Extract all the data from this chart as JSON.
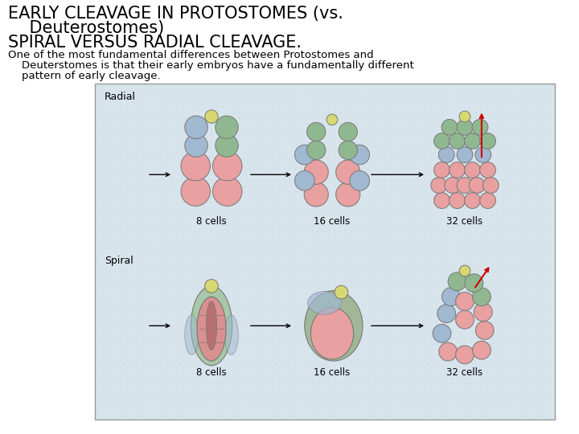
{
  "bg_color": "#ffffff",
  "title_line1": "EARLY CLEAVAGE IN PROTOSTOMES (vs.",
  "title_line2": "    Deuterostomes)",
  "title_line3": "SPIRAL VERSUS RADIAL CLEAVAGE.",
  "body_line1": "One of the most fundamental differences between Protostomes and",
  "body_line2": "    Deuterstomes is that their early embryos have a fundamentally different",
  "body_line3": "    pattern of early cleavage.",
  "title_fontsize": 15,
  "body_fontsize": 9.5,
  "radial_label": "Radial",
  "spiral_label": "Spiral",
  "cells_labels": [
    "8 cells",
    "16 cells",
    "32 cells"
  ],
  "box_bg": "#d8e4ec",
  "dot_color": "#b8cdd8",
  "box_border": "#999999",
  "pink": "#e8a0a0",
  "blue": "#a0b8d0",
  "green": "#90b890",
  "yellow": "#d8d870",
  "darkred": "#cc0000"
}
